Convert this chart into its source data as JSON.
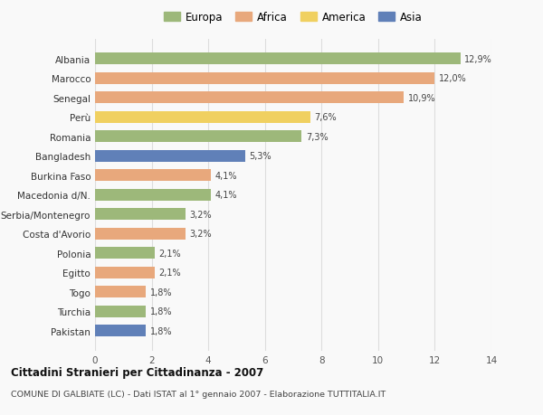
{
  "countries": [
    "Albania",
    "Marocco",
    "Senegal",
    "Perù",
    "Romania",
    "Bangladesh",
    "Burkina Faso",
    "Macedonia d/N.",
    "Serbia/Montenegro",
    "Costa d'Avorio",
    "Polonia",
    "Egitto",
    "Togo",
    "Turchia",
    "Pakistan"
  ],
  "values": [
    12.9,
    12.0,
    10.9,
    7.6,
    7.3,
    5.3,
    4.1,
    4.1,
    3.2,
    3.2,
    2.1,
    2.1,
    1.8,
    1.8,
    1.8
  ],
  "labels": [
    "12,9%",
    "12,0%",
    "10,9%",
    "7,6%",
    "7,3%",
    "5,3%",
    "4,1%",
    "4,1%",
    "3,2%",
    "3,2%",
    "2,1%",
    "2,1%",
    "1,8%",
    "1,8%",
    "1,8%"
  ],
  "continents": [
    "Europa",
    "Africa",
    "Africa",
    "America",
    "Europa",
    "Asia",
    "Africa",
    "Europa",
    "Europa",
    "Africa",
    "Europa",
    "Africa",
    "Africa",
    "Europa",
    "Asia"
  ],
  "colors": {
    "Europa": "#9db87a",
    "Africa": "#e8a87c",
    "America": "#f0d060",
    "Asia": "#6080b8"
  },
  "legend_order": [
    "Europa",
    "Africa",
    "America",
    "Asia"
  ],
  "xlim": [
    0,
    14
  ],
  "xticks": [
    0,
    2,
    4,
    6,
    8,
    10,
    12,
    14
  ],
  "title": "Cittadini Stranieri per Cittadinanza - 2007",
  "subtitle": "COMUNE DI GALBIATE (LC) - Dati ISTAT al 1° gennaio 2007 - Elaborazione TUTTITALIA.IT",
  "background_color": "#f9f9f9",
  "bar_height": 0.6,
  "grid_color": "#dddddd"
}
